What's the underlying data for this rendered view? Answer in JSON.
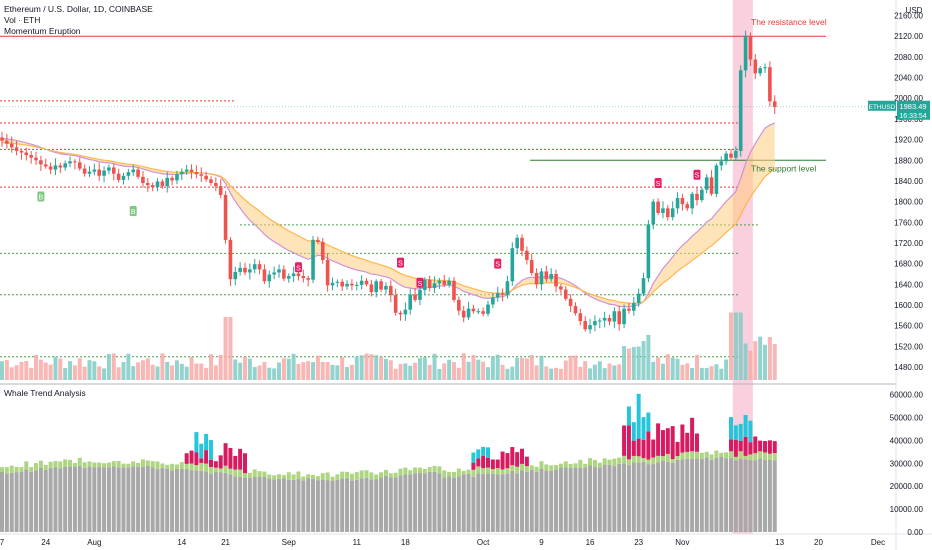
{
  "header": {
    "title": "Ethereum / U.S. Dollar, 1D, COINBASE",
    "vol_label": "Vol · ETH",
    "indicator": "Momentum Eruption"
  },
  "lower_pane": {
    "title": "Whale Trend Analysis"
  },
  "axis": {
    "currency": "USD",
    "symbol": "ETHUSD",
    "last_price": "1983.49",
    "countdown": "16:33:54"
  },
  "annotations": {
    "resistance": "The resistance level",
    "support": "The support level"
  },
  "colors": {
    "up": "#26a69a",
    "down": "#ef5350",
    "resistance": "#e53935",
    "support": "#2e7d32",
    "highlight": "#f8bbd0",
    "ribbon_orange": "#ffcc80",
    "ribbon_purple": "#e1bee7",
    "whale_gray": "#a8a8a8",
    "whale_green": "#aed581",
    "whale_red": "#d81b60",
    "whale_cyan": "#26c6da"
  },
  "chart_data": [
    {
      "type": "candlestick",
      "title": "Ethereum / U.S. Dollar, 1D, COINBASE",
      "ylabel": "USD",
      "ylim": [
        1455,
        2190
      ],
      "yticks": [
        1480,
        1520,
        1560,
        1600,
        1640,
        1680,
        1720,
        1760,
        1800,
        1840,
        1880,
        1920,
        1960,
        2000,
        2040,
        2080,
        2120,
        2160
      ],
      "xticks": [
        "7",
        "24",
        "Aug",
        "14",
        "21",
        "Sep",
        "11",
        "18",
        "Oct",
        "9",
        "16",
        "23",
        "Nov",
        "13",
        "20",
        "Dec"
      ],
      "closes": [
        1918,
        1912,
        1905,
        1898,
        1895,
        1890,
        1885,
        1880,
        1872,
        1868,
        1862,
        1870,
        1866,
        1874,
        1878,
        1876,
        1864,
        1854,
        1858,
        1862,
        1850,
        1860,
        1866,
        1854,
        1842,
        1850,
        1857,
        1862,
        1848,
        1836,
        1832,
        1828,
        1839,
        1830,
        1846,
        1841,
        1853,
        1858,
        1862,
        1857,
        1853,
        1850,
        1843,
        1836,
        1830,
        1813,
        1726,
        1650,
        1664,
        1672,
        1663,
        1669,
        1679,
        1669,
        1646,
        1659,
        1663,
        1669,
        1651,
        1656,
        1661,
        1656,
        1652,
        1649,
        1726,
        1722,
        1687,
        1638,
        1643,
        1645,
        1636,
        1641,
        1638,
        1639,
        1647,
        1640,
        1625,
        1646,
        1630,
        1637,
        1619,
        1585,
        1582,
        1591,
        1620,
        1610,
        1629,
        1649,
        1633,
        1642,
        1647,
        1639,
        1647,
        1610,
        1589,
        1576,
        1593,
        1588,
        1588,
        1583,
        1601,
        1615,
        1623,
        1620,
        1646,
        1710,
        1730,
        1705,
        1687,
        1662,
        1640,
        1665,
        1650,
        1660,
        1636,
        1630,
        1612,
        1598,
        1584,
        1569,
        1553,
        1561,
        1569,
        1570,
        1575,
        1568,
        1588,
        1563,
        1593,
        1589,
        1604,
        1622,
        1652,
        1756,
        1800,
        1778,
        1787,
        1770,
        1787,
        1807,
        1795,
        1787,
        1815,
        1803,
        1823,
        1847,
        1815,
        1870,
        1878,
        1893,
        1885,
        1898,
        2054,
        2120,
        2075,
        2048,
        2058,
        2060,
        1994,
        1983
      ],
      "volume_ylim": [
        0,
        1.0
      ],
      "whale_ylim": [
        0,
        62000
      ],
      "whale_yticks": [
        0,
        10000,
        20000,
        30000,
        40000,
        50000,
        60000
      ],
      "resistance_level": 2120,
      "support_level": 1880,
      "dotted_levels": [
        {
          "price": 1995,
          "color": "#e53935"
        },
        {
          "price": 1952,
          "color": "#e53935"
        },
        {
          "price": 1901,
          "color": "#e53935"
        },
        {
          "price": 1828,
          "color": "#e53935"
        },
        {
          "price": 1755,
          "color": "#43a047"
        },
        {
          "price": 1700,
          "color": "#43a047"
        },
        {
          "price": 1620,
          "color": "#43a047"
        },
        {
          "price": 1500,
          "color": "#43a047"
        }
      ]
    }
  ]
}
